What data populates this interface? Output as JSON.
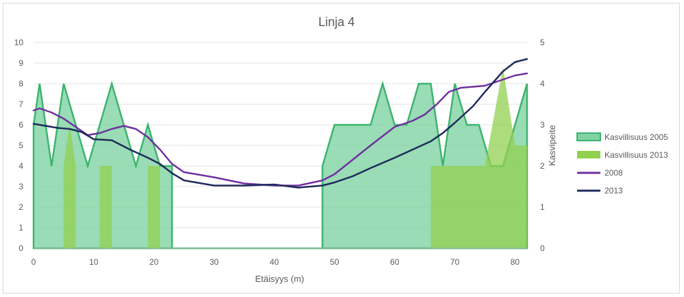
{
  "chart_data": {
    "type": "area",
    "title": "Linja 4",
    "xlabel": "Etäisyys (m)",
    "ylabel": "",
    "y2label": "Kasvipeite",
    "xlim": [
      0,
      82
    ],
    "ylim": [
      0,
      10
    ],
    "y2lim": [
      0,
      5
    ],
    "x_ticks": [
      "0",
      "10",
      "20",
      "30",
      "40",
      "50",
      "60",
      "70",
      "80"
    ],
    "y_ticks": [
      "0",
      "1",
      "2",
      "3",
      "4",
      "5",
      "6",
      "7",
      "8",
      "9",
      "10"
    ],
    "y2_ticks": [
      "0",
      "1",
      "2",
      "3",
      "4",
      "5"
    ],
    "grid": true,
    "legend_position": "right",
    "series": [
      {
        "name": "Kasvillisuus 2005",
        "type": "area",
        "axis": "secondary",
        "color": "#3cb46e",
        "fill": "#7fd3a3",
        "points": [
          [
            0,
            0
          ],
          [
            0,
            3
          ],
          [
            1,
            4
          ],
          [
            3,
            2
          ],
          [
            5,
            4
          ],
          [
            7,
            3
          ],
          [
            9,
            2
          ],
          [
            13,
            4
          ],
          [
            17,
            2
          ],
          [
            19,
            3
          ],
          [
            21,
            2
          ],
          [
            23,
            2
          ],
          [
            23,
            0
          ],
          [
            48,
            0
          ],
          [
            48,
            2
          ],
          [
            50,
            3
          ],
          [
            56,
            3
          ],
          [
            58,
            4
          ],
          [
            60,
            3
          ],
          [
            62,
            3
          ],
          [
            64,
            4
          ],
          [
            66,
            4
          ],
          [
            68,
            2
          ],
          [
            70,
            4
          ],
          [
            72,
            3
          ],
          [
            74,
            3
          ],
          [
            76,
            2
          ],
          [
            78,
            2
          ],
          [
            82,
            4
          ],
          [
            82,
            0
          ]
        ]
      },
      {
        "name": "Kasvillisuus 2013",
        "type": "area",
        "axis": "secondary",
        "color": "#92d050",
        "fill": "#92d050",
        "points": [
          [
            5,
            0
          ],
          [
            5,
            2
          ],
          [
            6,
            3
          ],
          [
            7,
            2
          ],
          [
            7,
            0
          ],
          [
            11,
            0
          ],
          [
            11,
            2
          ],
          [
            13,
            2
          ],
          [
            13,
            0
          ],
          [
            19,
            0
          ],
          [
            19,
            2
          ],
          [
            21,
            2
          ],
          [
            21,
            0
          ],
          [
            66,
            0
          ],
          [
            66,
            2
          ],
          [
            75,
            2
          ],
          [
            78,
            4.4
          ],
          [
            80,
            2.5
          ],
          [
            82,
            2.5
          ],
          [
            82,
            0
          ]
        ]
      },
      {
        "name": "2008",
        "type": "line",
        "axis": "primary",
        "color": "#7030a0",
        "points": [
          [
            0,
            6.7
          ],
          [
            1,
            6.8
          ],
          [
            3,
            6.6
          ],
          [
            5,
            6.3
          ],
          [
            7,
            5.9
          ],
          [
            9,
            5.5
          ],
          [
            11,
            5.6
          ],
          [
            13,
            5.8
          ],
          [
            15,
            5.95
          ],
          [
            17,
            5.8
          ],
          [
            19,
            5.4
          ],
          [
            21,
            4.8
          ],
          [
            23,
            4.1
          ],
          [
            25,
            3.7
          ],
          [
            30,
            3.45
          ],
          [
            35,
            3.15
          ],
          [
            40,
            3.05
          ],
          [
            44,
            3.05
          ],
          [
            48,
            3.3
          ],
          [
            50,
            3.6
          ],
          [
            53,
            4.3
          ],
          [
            56,
            5
          ],
          [
            60,
            5.9
          ],
          [
            63,
            6.2
          ],
          [
            65,
            6.5
          ],
          [
            67,
            7
          ],
          [
            69,
            7.6
          ],
          [
            71,
            7.8
          ],
          [
            75,
            7.9
          ],
          [
            80,
            8.4
          ],
          [
            82,
            8.5
          ]
        ]
      },
      {
        "name": "2013",
        "type": "line",
        "axis": "primary",
        "color": "#1f2a5c",
        "points": [
          [
            0,
            6.05
          ],
          [
            2,
            5.95
          ],
          [
            4,
            5.85
          ],
          [
            6,
            5.8
          ],
          [
            8,
            5.65
          ],
          [
            10,
            5.3
          ],
          [
            13,
            5.25
          ],
          [
            16,
            4.8
          ],
          [
            19,
            4.4
          ],
          [
            21,
            4.1
          ],
          [
            23,
            3.65
          ],
          [
            25,
            3.3
          ],
          [
            30,
            3.05
          ],
          [
            35,
            3.05
          ],
          [
            40,
            3.1
          ],
          [
            44,
            2.95
          ],
          [
            48,
            3.05
          ],
          [
            50,
            3.2
          ],
          [
            53,
            3.5
          ],
          [
            56,
            3.9
          ],
          [
            60,
            4.4
          ],
          [
            63,
            4.8
          ],
          [
            66,
            5.2
          ],
          [
            68,
            5.6
          ],
          [
            70,
            6.1
          ],
          [
            73,
            6.9
          ],
          [
            75,
            7.6
          ],
          [
            78,
            8.6
          ],
          [
            80,
            9.05
          ],
          [
            82,
            9.2
          ]
        ]
      }
    ]
  }
}
